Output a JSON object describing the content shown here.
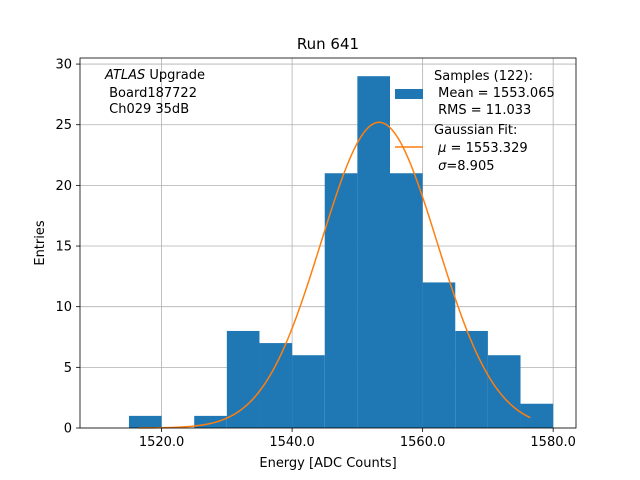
{
  "chart_data": {
    "type": "bar",
    "title": "Run 641",
    "xlabel": "Energy [ADC Counts]",
    "ylabel": "Entries",
    "xlim": [
      1507.5,
      1583.5
    ],
    "ylim": [
      0,
      30.5
    ],
    "xticks": [
      1520,
      1540,
      1560,
      1580
    ],
    "xtick_labels": [
      "1520.0",
      "1540.0",
      "1560.0",
      "1580.0"
    ],
    "yticks": [
      0,
      5,
      10,
      15,
      20,
      25,
      30
    ],
    "ytick_labels": [
      "0",
      "5",
      "10",
      "15",
      "20",
      "25",
      "30"
    ],
    "grid": true,
    "bin_edges": [
      1515,
      1520,
      1525,
      1530,
      1535,
      1540,
      1545,
      1550,
      1555,
      1560,
      1565,
      1570,
      1575,
      1580
    ],
    "bin_counts": [
      1,
      0,
      1,
      8,
      7,
      6,
      21,
      29,
      21,
      12,
      8,
      6,
      2
    ],
    "bar_color": "#1f77b4",
    "fit": {
      "mu": 1553.329,
      "sigma": 8.905,
      "peak": 25.2,
      "x_range": [
        1516.5,
        1576.5
      ],
      "color": "#ff7f0e"
    },
    "annotation": {
      "line1_italic": "ATLAS",
      "line1_rest": " Upgrade",
      "line2": " Board187722",
      "line3": " Ch029 35dB"
    },
    "legend": {
      "position": "top-right",
      "samples_header": "Samples (122):",
      "samples_mean": " Mean = 1553.065",
      "samples_rms": " RMS = 11.033",
      "fit_header": "Gaussian Fit:",
      "fit_mu_symbol": "μ",
      "fit_mu_value": " = 1553.329",
      "fit_sigma_symbol": "σ",
      "fit_sigma_value": "=8.905"
    }
  }
}
